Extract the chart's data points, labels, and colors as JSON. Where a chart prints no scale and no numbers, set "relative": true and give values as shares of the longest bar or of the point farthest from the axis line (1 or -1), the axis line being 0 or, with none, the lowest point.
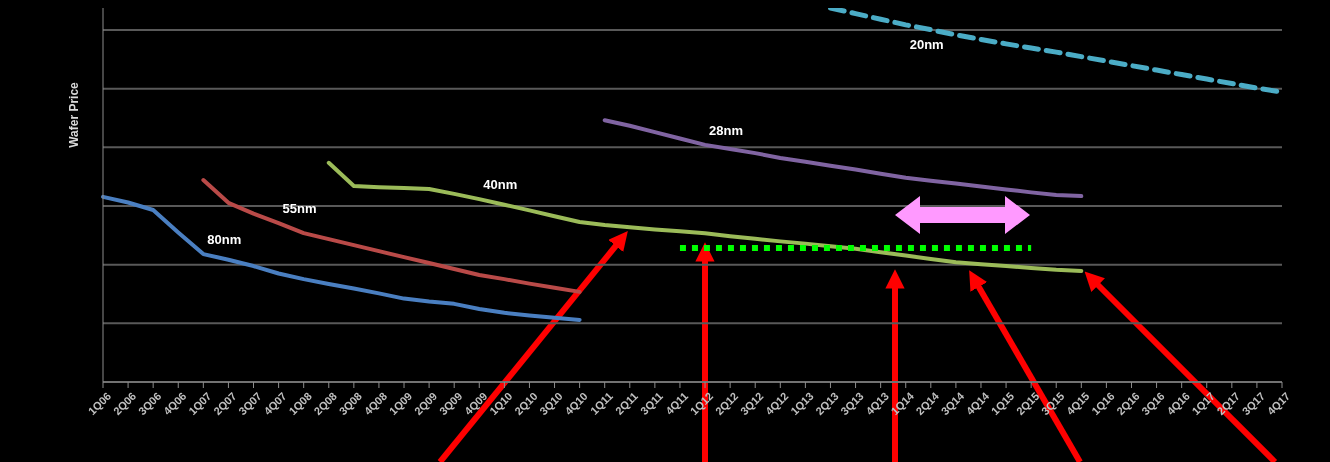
{
  "chart_data": {
    "type": "line",
    "relative": true,
    "ylabel": "Wafer Price",
    "grid": "y",
    "line_style": "solid",
    "marker": "none",
    "categories": [
      "1Q06",
      "2Q06",
      "3Q06",
      "4Q06",
      "1Q07",
      "2Q07",
      "3Q07",
      "4Q07",
      "1Q08",
      "2Q08",
      "3Q08",
      "4Q08",
      "1Q09",
      "2Q09",
      "3Q09",
      "4Q09",
      "1Q10",
      "2Q10",
      "3Q10",
      "4Q10",
      "1Q11",
      "2Q11",
      "3Q11",
      "4Q11",
      "1Q12",
      "2Q12",
      "3Q12",
      "4Q12",
      "1Q13",
      "2Q13",
      "3Q13",
      "4Q13",
      "1Q14",
      "2Q14",
      "3Q14",
      "4Q14",
      "1Q15",
      "2Q15",
      "3Q15",
      "4Q15",
      "1Q16",
      "2Q16",
      "3Q16",
      "4Q16",
      "1Q17",
      "2Q17",
      "3Q17",
      "4Q17"
    ],
    "series": [
      {
        "name": "80nm",
        "color": "#4a7fc1",
        "values": [
          0.495,
          0.48,
          0.46,
          0.4,
          0.342,
          0.327,
          0.31,
          0.29,
          0.275,
          0.262,
          0.25,
          0.237,
          0.223,
          0.215,
          0.209,
          0.195,
          0.185,
          0.178,
          0.172,
          0.166,
          null,
          null,
          null,
          null,
          null,
          null,
          null,
          null,
          null,
          null,
          null,
          null,
          null,
          null,
          null,
          null,
          null,
          null,
          null,
          null,
          null,
          null,
          null,
          null,
          null,
          null,
          null,
          null
        ]
      },
      {
        "name": "55nm",
        "color": "#b94a48",
        "values": [
          null,
          null,
          null,
          null,
          0.54,
          0.479,
          0.45,
          0.425,
          0.398,
          0.382,
          0.366,
          0.35,
          0.334,
          0.318,
          0.302,
          0.286,
          0.275,
          0.263,
          0.252,
          0.241,
          null,
          null,
          null,
          null,
          null,
          null,
          null,
          null,
          null,
          null,
          null,
          null,
          null,
          null,
          null,
          null,
          null,
          null,
          null,
          null,
          null,
          null,
          null,
          null,
          null,
          null,
          null,
          null
        ]
      },
      {
        "name": "40nm",
        "color": "#9bbb59",
        "values": [
          null,
          null,
          null,
          null,
          null,
          null,
          null,
          null,
          null,
          0.586,
          0.524,
          0.521,
          0.519,
          0.516,
          0.503,
          0.489,
          0.474,
          0.459,
          0.443,
          0.428,
          0.42,
          0.414,
          0.408,
          0.403,
          0.398,
          0.39,
          0.383,
          0.376,
          0.37,
          0.363,
          0.356,
          0.347,
          0.338,
          0.329,
          0.32,
          0.315,
          0.31,
          0.305,
          0.3,
          0.297,
          null,
          null,
          null,
          null,
          null,
          null,
          null,
          null
        ]
      },
      {
        "name": "28nm",
        "color": "#8064a2",
        "values": [
          null,
          null,
          null,
          null,
          null,
          null,
          null,
          null,
          null,
          null,
          null,
          null,
          null,
          null,
          null,
          null,
          null,
          null,
          null,
          null,
          0.7,
          0.685,
          0.668,
          0.651,
          0.634,
          0.623,
          0.612,
          0.599,
          0.589,
          0.578,
          0.568,
          0.557,
          0.546,
          0.538,
          0.531,
          0.523,
          0.515,
          0.507,
          0.5,
          0.497,
          null,
          null,
          null,
          null,
          null,
          null,
          null,
          null
        ]
      },
      {
        "name": "20nm",
        "color": "#4bacc6",
        "line_style": "dashed",
        "values": [
          null,
          null,
          null,
          null,
          null,
          null,
          null,
          null,
          null,
          null,
          null,
          null,
          null,
          null,
          null,
          null,
          null,
          null,
          null,
          null,
          null,
          null,
          null,
          null,
          null,
          null,
          null,
          null,
          null,
          1,
          0.985,
          0.97,
          0.955,
          0.942,
          0.928,
          0.916,
          0.904,
          0.893,
          0.882,
          0.87,
          0.858,
          0.846,
          0.834,
          0.822,
          0.81,
          0.798,
          0.786,
          0.775
        ]
      },
      {
        "color": "#00ff00",
        "line_style": "dotted",
        "values": [
          null,
          null,
          null,
          null,
          null,
          null,
          null,
          null,
          null,
          null,
          null,
          null,
          null,
          null,
          null,
          null,
          null,
          null,
          null,
          null,
          null,
          null,
          null,
          0.358,
          0.358,
          0.358,
          0.358,
          0.358,
          0.358,
          0.358,
          0.358,
          0.358,
          0.358,
          0.358,
          0.358,
          0.358,
          0.358,
          0.358,
          null,
          null,
          null,
          null,
          null,
          null,
          null,
          null,
          null,
          null
        ]
      }
    ]
  }
}
